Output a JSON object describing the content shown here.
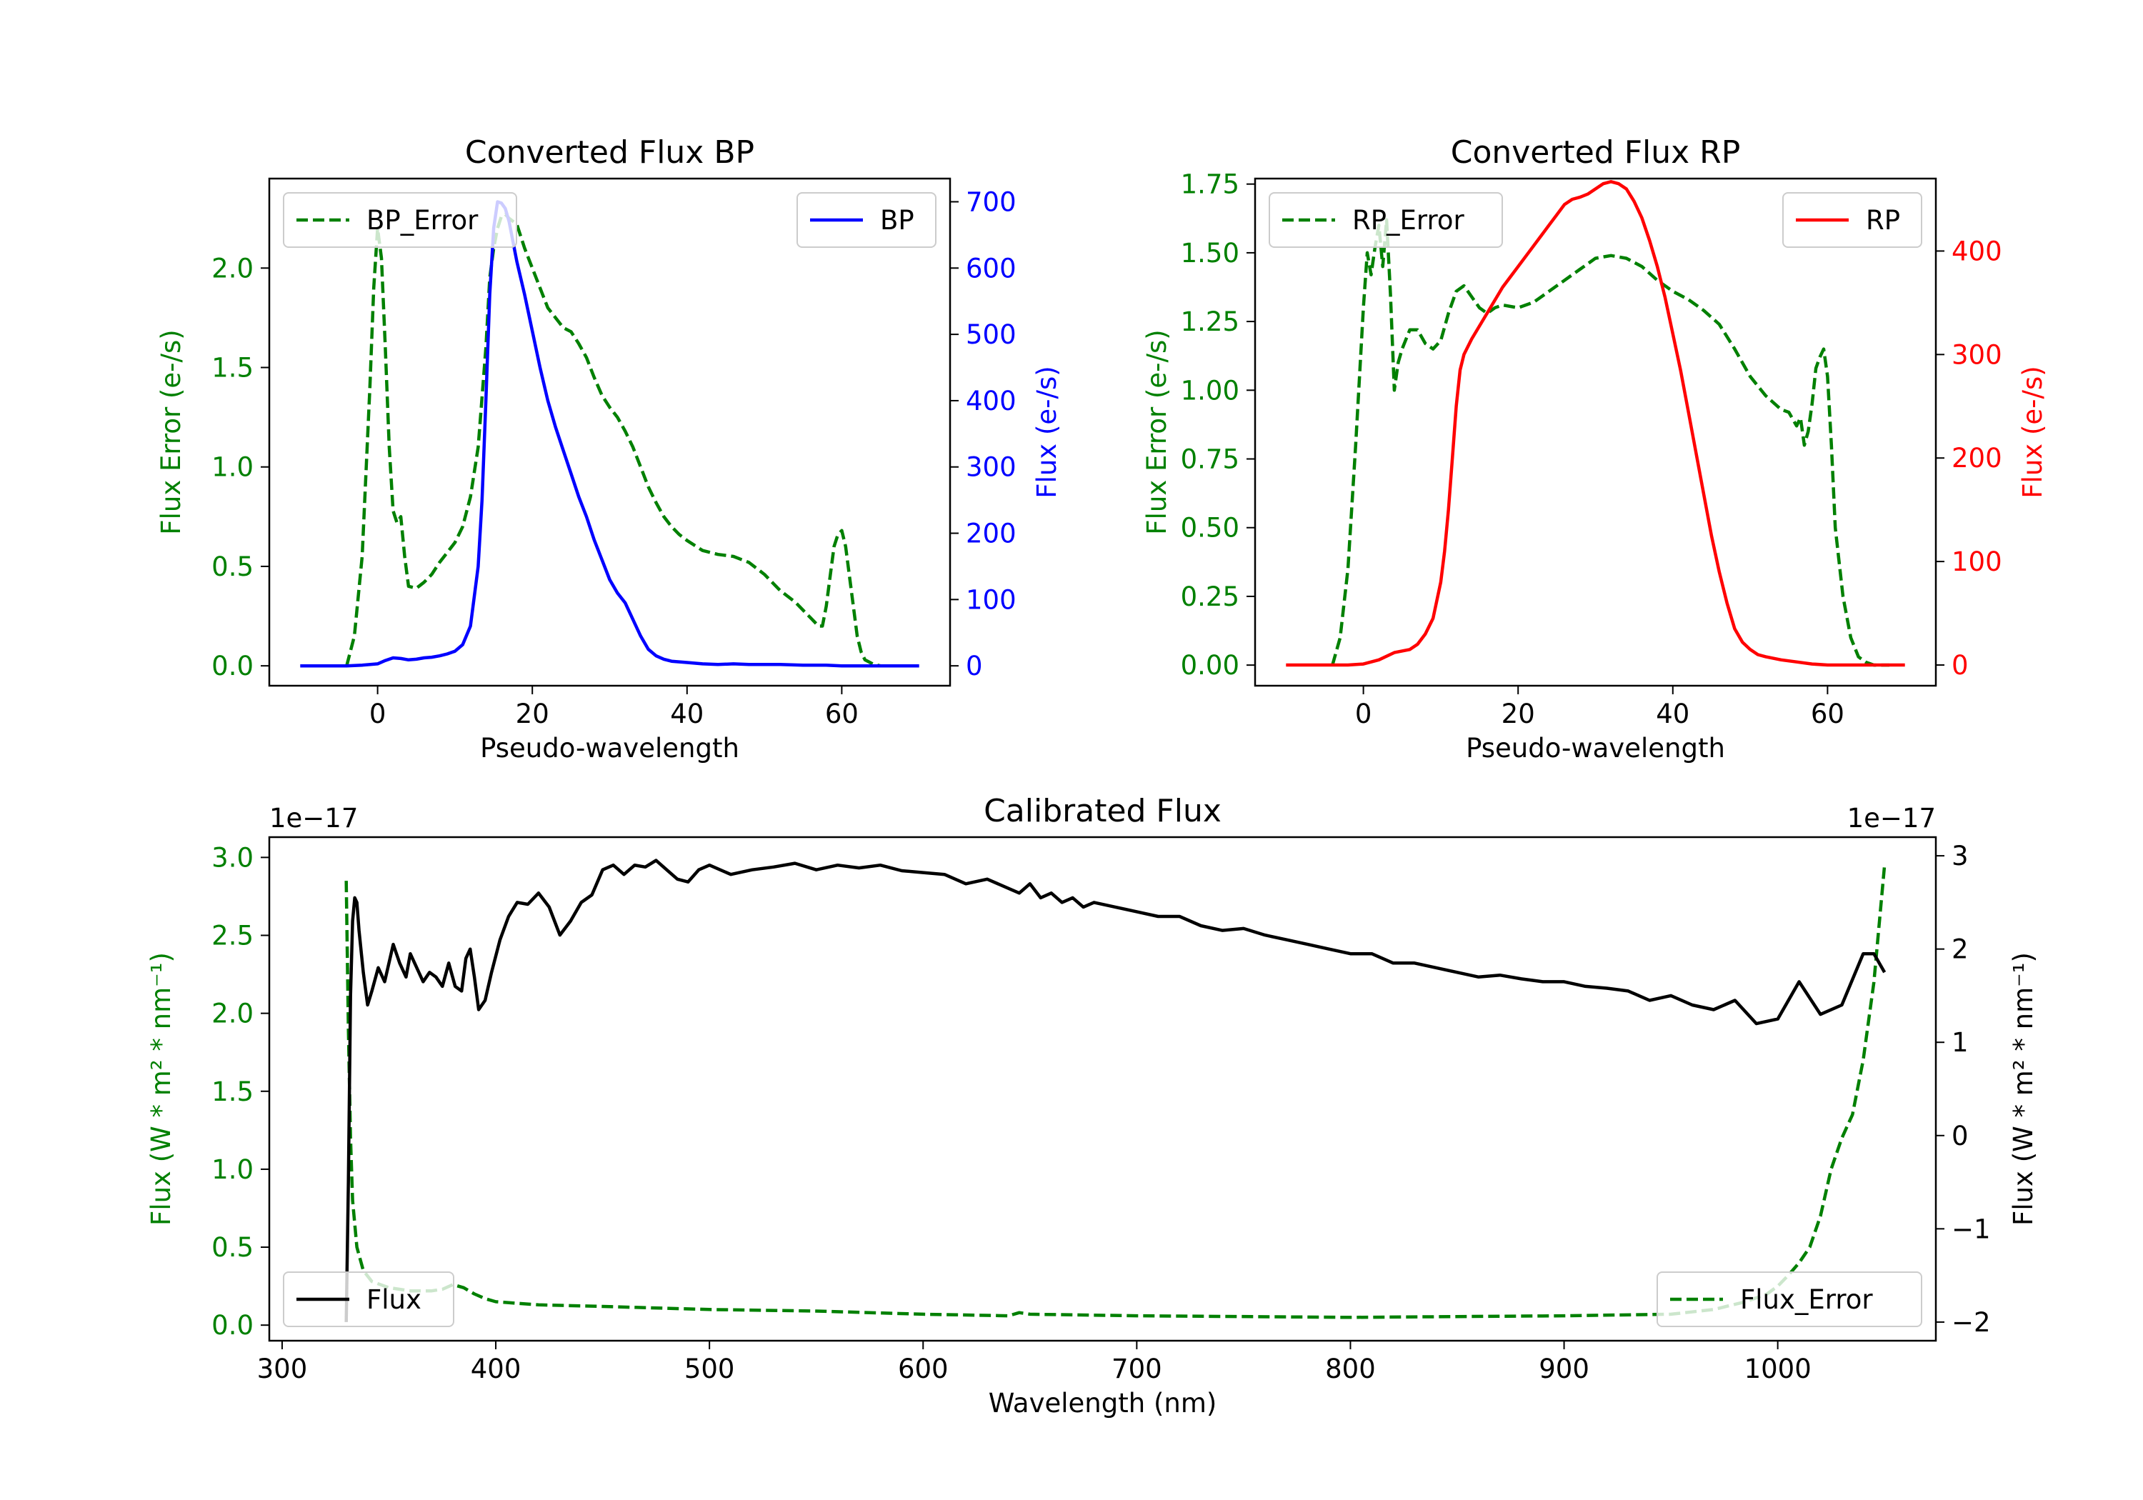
{
  "colors": {
    "green": "#008000",
    "blue": "#0000ff",
    "red": "#ff0000",
    "black": "#000000",
    "legend_border": "#cccccc"
  },
  "chart_data": [
    {
      "id": "bp",
      "type": "line",
      "title": "Converted Flux BP",
      "xlabel": "Pseudo-wavelength",
      "ylabel_left": "Flux Error (e-/s)",
      "ylabel_right": "Flux (e-/s)",
      "xlim": [
        -14,
        74
      ],
      "ylim_left": [
        -0.1,
        2.45
      ],
      "ylim_right": [
        -30,
        735
      ],
      "x_ticks": [
        0,
        20,
        40,
        60
      ],
      "x_tick_labels": [
        "0",
        "20",
        "40",
        "60"
      ],
      "y_left_ticks": [
        0.0,
        0.5,
        1.0,
        1.5,
        2.0
      ],
      "y_left_tick_labels": [
        "0.0",
        "0.5",
        "1.0",
        "1.5",
        "2.0"
      ],
      "y_right_ticks": [
        0,
        100,
        200,
        300,
        400,
        500,
        600,
        700
      ],
      "y_right_tick_labels": [
        "0",
        "100",
        "200",
        "300",
        "400",
        "500",
        "600",
        "700"
      ],
      "legend_left": {
        "label": "BP_Error",
        "style": "dashed",
        "color": "#008000",
        "position": "upper left"
      },
      "legend_right": {
        "label": "BP",
        "style": "solid",
        "color": "#0000ff",
        "position": "upper right"
      },
      "series": [
        {
          "name": "BP_Error",
          "axis": "left",
          "style": "dashed",
          "color": "#008000",
          "x": [
            -4,
            -3,
            -2,
            -1,
            -0.5,
            0,
            0.5,
            1,
            1.5,
            2,
            2.5,
            3,
            3.5,
            4,
            5,
            6,
            7,
            8,
            9,
            10,
            11,
            12,
            13,
            14,
            14.5,
            15,
            15.5,
            16,
            16.5,
            17,
            18,
            19,
            20,
            21,
            22,
            23,
            24,
            25,
            26,
            27,
            28,
            29,
            30,
            31,
            32,
            33,
            34,
            35,
            36,
            37,
            38,
            39,
            40,
            42,
            44,
            46,
            48,
            50,
            52,
            54,
            55,
            56,
            57,
            57.5,
            58,
            58.5,
            59,
            59.5,
            60,
            60.5,
            61,
            61.5,
            62,
            62.5,
            63,
            64,
            65,
            66,
            68
          ],
          "values": [
            0.0,
            0.15,
            0.55,
            1.4,
            1.9,
            2.2,
            2.05,
            1.6,
            1.1,
            0.78,
            0.72,
            0.75,
            0.55,
            0.4,
            0.39,
            0.42,
            0.46,
            0.52,
            0.57,
            0.62,
            0.7,
            0.85,
            1.1,
            1.6,
            1.95,
            2.1,
            2.2,
            2.26,
            2.27,
            2.25,
            2.22,
            2.1,
            2.0,
            1.9,
            1.8,
            1.75,
            1.7,
            1.68,
            1.62,
            1.55,
            1.45,
            1.36,
            1.3,
            1.25,
            1.18,
            1.1,
            1.0,
            0.9,
            0.82,
            0.75,
            0.7,
            0.66,
            0.63,
            0.58,
            0.56,
            0.55,
            0.52,
            0.46,
            0.38,
            0.32,
            0.28,
            0.24,
            0.2,
            0.2,
            0.3,
            0.45,
            0.6,
            0.66,
            0.68,
            0.6,
            0.45,
            0.3,
            0.15,
            0.07,
            0.03,
            0.01,
            0.0,
            0.0,
            0.0
          ]
        },
        {
          "name": "BP",
          "axis": "right",
          "style": "solid",
          "color": "#0000ff",
          "x": [
            -10,
            -6,
            -4,
            -2,
            0,
            1,
            2,
            3,
            4,
            5,
            6,
            7,
            8,
            9,
            10,
            11,
            12,
            13,
            13.5,
            14,
            14.5,
            15,
            15.5,
            16,
            16.5,
            17,
            17.5,
            18,
            19,
            20,
            21,
            22,
            23,
            24,
            25,
            26,
            27,
            28,
            29,
            30,
            31,
            32,
            33,
            34,
            35,
            36,
            37,
            38,
            40,
            42,
            44,
            46,
            48,
            50,
            52,
            55,
            58,
            60,
            62,
            64,
            66,
            68,
            70
          ],
          "values": [
            0,
            0,
            0,
            1,
            3,
            8,
            12,
            11,
            9,
            10,
            12,
            13,
            15,
            18,
            22,
            32,
            60,
            150,
            250,
            400,
            560,
            660,
            700,
            698,
            690,
            670,
            640,
            610,
            560,
            505,
            450,
            400,
            360,
            325,
            290,
            255,
            225,
            190,
            160,
            130,
            110,
            95,
            70,
            45,
            25,
            15,
            10,
            7,
            5,
            3,
            2,
            3,
            2,
            2,
            2,
            1,
            1,
            0,
            0,
            0,
            0,
            0,
            0
          ]
        }
      ]
    },
    {
      "id": "rp",
      "type": "line",
      "title": "Converted Flux RP",
      "xlabel": "Pseudo-wavelength",
      "ylabel_left": "Flux Error (e-/s)",
      "ylabel_right": "Flux (e-/s)",
      "xlim": [
        -14,
        74
      ],
      "ylim_left": [
        -0.075,
        1.77
      ],
      "ylim_right": [
        -20,
        470
      ],
      "x_ticks": [
        0,
        20,
        40,
        60
      ],
      "x_tick_labels": [
        "0",
        "20",
        "40",
        "60"
      ],
      "y_left_ticks": [
        0.0,
        0.25,
        0.5,
        0.75,
        1.0,
        1.25,
        1.5,
        1.75
      ],
      "y_left_tick_labels": [
        "0.00",
        "0.25",
        "0.50",
        "0.75",
        "1.00",
        "1.25",
        "1.50",
        "1.75"
      ],
      "y_right_ticks": [
        0,
        100,
        200,
        300,
        400
      ],
      "y_right_tick_labels": [
        "0",
        "100",
        "200",
        "300",
        "400"
      ],
      "legend_left": {
        "label": "RP_Error",
        "style": "dashed",
        "color": "#008000",
        "position": "upper left"
      },
      "legend_right": {
        "label": "RP",
        "style": "solid",
        "color": "#ff0000",
        "position": "upper right"
      },
      "series": [
        {
          "name": "RP_Error",
          "axis": "left",
          "style": "dashed",
          "color": "#008000",
          "x": [
            -4,
            -3,
            -2,
            -1,
            0,
            0.5,
            1,
            1.5,
            2,
            2.5,
            3,
            3.5,
            4,
            4.5,
            5,
            6,
            7,
            8,
            9,
            10,
            11,
            12,
            13,
            14,
            15,
            16,
            17,
            18,
            20,
            22,
            24,
            26,
            28,
            30,
            32,
            34,
            36,
            38,
            40,
            42,
            44,
            46,
            48,
            50,
            52,
            54,
            55,
            56,
            56.5,
            57,
            57.5,
            58,
            58.5,
            59,
            59.5,
            60,
            60.5,
            61,
            62,
            63,
            64,
            65,
            66,
            68
          ],
          "values": [
            0.0,
            0.1,
            0.35,
            0.8,
            1.3,
            1.5,
            1.42,
            1.52,
            1.6,
            1.45,
            1.62,
            1.35,
            1.0,
            1.1,
            1.15,
            1.22,
            1.22,
            1.17,
            1.15,
            1.18,
            1.28,
            1.36,
            1.38,
            1.34,
            1.3,
            1.28,
            1.3,
            1.31,
            1.3,
            1.32,
            1.36,
            1.4,
            1.44,
            1.48,
            1.49,
            1.48,
            1.45,
            1.4,
            1.36,
            1.33,
            1.29,
            1.24,
            1.15,
            1.05,
            0.98,
            0.93,
            0.92,
            0.87,
            0.9,
            0.8,
            0.85,
            0.95,
            1.08,
            1.12,
            1.15,
            1.05,
            0.8,
            0.5,
            0.25,
            0.1,
            0.03,
            0.01,
            0.0,
            0.0
          ]
        },
        {
          "name": "RP",
          "axis": "right",
          "style": "solid",
          "color": "#ff0000",
          "x": [
            -10,
            -4,
            -2,
            0,
            2,
            4,
            6,
            7,
            8,
            9,
            10,
            10.5,
            11,
            11.5,
            12,
            12.5,
            13,
            14,
            16,
            18,
            20,
            22,
            24,
            25,
            26,
            27,
            28,
            29,
            30,
            31,
            32,
            33,
            34,
            35,
            36,
            37,
            38,
            39,
            40,
            41,
            42,
            43,
            44,
            45,
            46,
            47,
            48,
            49,
            50,
            51,
            52,
            54,
            56,
            58,
            60,
            62,
            65,
            70
          ],
          "values": [
            0,
            0,
            0,
            1,
            5,
            12,
            15,
            20,
            30,
            45,
            80,
            110,
            150,
            200,
            250,
            285,
            300,
            315,
            340,
            365,
            385,
            405,
            425,
            435,
            445,
            450,
            452,
            455,
            460,
            465,
            467,
            465,
            460,
            448,
            432,
            410,
            385,
            355,
            320,
            285,
            245,
            205,
            165,
            125,
            90,
            60,
            35,
            22,
            15,
            10,
            8,
            5,
            3,
            1,
            0,
            0,
            0,
            0
          ]
        }
      ]
    },
    {
      "id": "calibrated",
      "type": "line",
      "title": "Calibrated Flux",
      "xlabel": "Wavelength (nm)",
      "ylabel_left": "Flux (W * m² * nm⁻¹)",
      "ylabel_right": "Flux (W * m² * nm⁻¹)",
      "offset_left": "1e−17",
      "offset_right": "1e−17",
      "xlim": [
        294,
        1074
      ],
      "ylim_left": [
        -0.1,
        3.13
      ],
      "ylim_right": [
        -2.2,
        3.2
      ],
      "x_ticks": [
        300,
        400,
        500,
        600,
        700,
        800,
        900,
        1000
      ],
      "x_tick_labels": [
        "300",
        "400",
        "500",
        "600",
        "700",
        "800",
        "900",
        "1000"
      ],
      "y_left_ticks": [
        0.0,
        0.5,
        1.0,
        1.5,
        2.0,
        2.5,
        3.0
      ],
      "y_left_tick_labels": [
        "0.0",
        "0.5",
        "1.0",
        "1.5",
        "2.0",
        "2.5",
        "3.0"
      ],
      "y_right_ticks": [
        -2,
        -1,
        0,
        1,
        2,
        3
      ],
      "y_right_tick_labels": [
        "−2",
        "−1",
        "0",
        "1",
        "2",
        "3"
      ],
      "legend_left": {
        "label": "Flux",
        "style": "solid",
        "color": "#000000",
        "position": "lower left"
      },
      "legend_right": {
        "label": "Flux_Error",
        "style": "dashed",
        "color": "#008000",
        "position": "lower right"
      },
      "series": [
        {
          "name": "Flux_Error",
          "axis": "left",
          "style": "dashed",
          "color": "#008000",
          "x": [
            330,
            331,
            332,
            333,
            335,
            338,
            342,
            350,
            360,
            370,
            375,
            380,
            385,
            390,
            395,
            400,
            420,
            450,
            500,
            550,
            600,
            640,
            645,
            650,
            700,
            800,
            900,
            950,
            970,
            985,
            995,
            1000,
            1005,
            1010,
            1015,
            1020,
            1025,
            1030,
            1035,
            1040,
            1045,
            1050
          ],
          "values": [
            2.85,
            1.9,
            1.2,
            0.8,
            0.5,
            0.35,
            0.28,
            0.24,
            0.22,
            0.22,
            0.23,
            0.26,
            0.24,
            0.2,
            0.17,
            0.15,
            0.13,
            0.12,
            0.1,
            0.09,
            0.07,
            0.06,
            0.08,
            0.07,
            0.06,
            0.05,
            0.06,
            0.07,
            0.1,
            0.15,
            0.2,
            0.25,
            0.32,
            0.4,
            0.5,
            0.7,
            1.0,
            1.2,
            1.35,
            1.7,
            2.2,
            2.95
          ]
        },
        {
          "name": "Flux",
          "axis": "right",
          "style": "solid",
          "color": "#000000",
          "x": [
            330,
            331,
            332,
            333,
            334,
            335,
            336,
            338,
            340,
            342,
            345,
            348,
            350,
            352,
            355,
            358,
            360,
            363,
            366,
            369,
            372,
            375,
            378,
            381,
            384,
            386,
            388,
            390,
            392,
            395,
            398,
            402,
            406,
            410,
            415,
            420,
            425,
            430,
            435,
            440,
            445,
            450,
            455,
            460,
            465,
            470,
            475,
            480,
            485,
            490,
            495,
            500,
            510,
            520,
            530,
            540,
            550,
            560,
            570,
            580,
            590,
            600,
            610,
            620,
            630,
            640,
            645,
            650,
            655,
            660,
            665,
            670,
            675,
            680,
            690,
            700,
            710,
            720,
            730,
            740,
            750,
            760,
            770,
            780,
            790,
            800,
            810,
            820,
            830,
            840,
            850,
            860,
            870,
            880,
            890,
            900,
            910,
            920,
            930,
            940,
            950,
            960,
            970,
            980,
            990,
            1000,
            1010,
            1020,
            1030,
            1040,
            1045,
            1050
          ],
          "values": [
            -2.0,
            -0.5,
            1.5,
            2.3,
            2.55,
            2.5,
            2.2,
            1.75,
            1.4,
            1.55,
            1.8,
            1.65,
            1.85,
            2.05,
            1.85,
            1.7,
            1.95,
            1.8,
            1.65,
            1.75,
            1.7,
            1.6,
            1.85,
            1.6,
            1.55,
            1.9,
            2.0,
            1.7,
            1.35,
            1.45,
            1.75,
            2.1,
            2.35,
            2.5,
            2.48,
            2.6,
            2.45,
            2.15,
            2.3,
            2.5,
            2.58,
            2.85,
            2.9,
            2.8,
            2.9,
            2.88,
            2.95,
            2.85,
            2.75,
            2.72,
            2.85,
            2.9,
            2.8,
            2.85,
            2.88,
            2.92,
            2.85,
            2.9,
            2.87,
            2.9,
            2.84,
            2.82,
            2.8,
            2.7,
            2.75,
            2.65,
            2.6,
            2.7,
            2.55,
            2.6,
            2.5,
            2.55,
            2.45,
            2.5,
            2.45,
            2.4,
            2.35,
            2.35,
            2.25,
            2.2,
            2.22,
            2.15,
            2.1,
            2.05,
            2.0,
            1.95,
            1.95,
            1.85,
            1.85,
            1.8,
            1.75,
            1.7,
            1.72,
            1.68,
            1.65,
            1.65,
            1.6,
            1.58,
            1.55,
            1.45,
            1.5,
            1.4,
            1.35,
            1.45,
            1.2,
            1.25,
            1.65,
            1.3,
            1.4,
            1.95,
            1.95,
            1.75
          ]
        }
      ]
    }
  ]
}
